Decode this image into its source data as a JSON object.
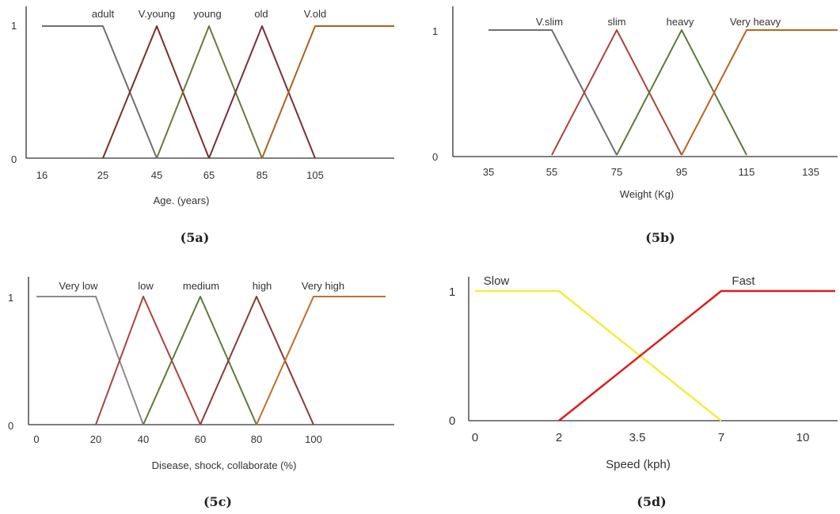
{
  "chart_data": [
    {
      "type": "line",
      "caption": "(5a)",
      "xlabel": "Age. (years)",
      "ylabel": "",
      "x_ticks": [
        "16",
        "25",
        "45",
        "65",
        "85",
        "105"
      ],
      "y_ticks": [
        "0",
        "1"
      ],
      "series": [
        {
          "name": "adult",
          "color": "#6f6f6f",
          "x": [
            "16",
            "25",
            "45"
          ],
          "y": [
            1,
            1,
            0
          ]
        },
        {
          "name": "V.young",
          "color": "#7a2e2e",
          "x": [
            "25",
            "45",
            "65"
          ],
          "y": [
            0,
            1,
            0
          ]
        },
        {
          "name": "young",
          "color": "#6b7a3a",
          "x": [
            "45",
            "65",
            "85"
          ],
          "y": [
            0,
            1,
            0
          ]
        },
        {
          "name": "old",
          "color": "#7a2e3e",
          "x": [
            "65",
            "85",
            "105"
          ],
          "y": [
            0,
            1,
            0
          ]
        },
        {
          "name": "V.old",
          "color": "#a8641e",
          "x": [
            "85",
            "105"
          ],
          "y": [
            0,
            1
          ],
          "extends_right": true
        }
      ]
    },
    {
      "type": "line",
      "caption": "(5b)",
      "xlabel": "Weight (Kg)",
      "ylabel": "",
      "x_ticks": [
        "35",
        "55",
        "75",
        "95",
        "115",
        "135"
      ],
      "y_ticks": [
        "0",
        "1"
      ],
      "series": [
        {
          "name": "V.slim",
          "color": "#6f6f6f",
          "x": [
            "35",
            "55",
            "75"
          ],
          "y": [
            1,
            1,
            0
          ]
        },
        {
          "name": "slim",
          "color": "#a9443e",
          "x": [
            "55",
            "75",
            "95"
          ],
          "y": [
            0,
            1,
            0
          ]
        },
        {
          "name": "heavy",
          "color": "#5f7a3a",
          "x": [
            "75",
            "95",
            "115"
          ],
          "y": [
            0,
            1,
            0
          ]
        },
        {
          "name": "Very heavy",
          "color": "#b8651e",
          "x": [
            "95",
            "115"
          ],
          "y": [
            0,
            1
          ],
          "extends_right": true
        }
      ]
    },
    {
      "type": "line",
      "caption": "(5c)",
      "xlabel": "Disease, shock, collaborate (%)",
      "ylabel": "",
      "x_ticks": [
        "0",
        "20",
        "40",
        "60",
        "80",
        "100"
      ],
      "y_ticks": [
        "0",
        "1"
      ],
      "series": [
        {
          "name": "Very low",
          "color": "#8c8c8c",
          "x": [
            "0",
            "20",
            "40"
          ],
          "y": [
            1,
            1,
            0
          ]
        },
        {
          "name": "low",
          "color": "#a9443e",
          "x": [
            "20",
            "40",
            "60"
          ],
          "y": [
            0,
            1,
            0
          ]
        },
        {
          "name": "medium",
          "color": "#5f7a3a",
          "x": [
            "40",
            "60",
            "80"
          ],
          "y": [
            0,
            1,
            0
          ]
        },
        {
          "name": "high",
          "color": "#8a3a3a",
          "x": [
            "60",
            "80",
            "100"
          ],
          "y": [
            0,
            1,
            0
          ]
        },
        {
          "name": "Very high",
          "color": "#c0702a",
          "x": [
            "80",
            "100"
          ],
          "y": [
            0,
            1
          ],
          "extends_right": true
        }
      ]
    },
    {
      "type": "line",
      "caption": "(5d)",
      "xlabel": "Speed (kph)",
      "ylabel": "",
      "x_ticks": [
        "0",
        "2",
        "3.5",
        "7",
        "10"
      ],
      "y_ticks": [
        "0",
        "1"
      ],
      "series": [
        {
          "name": "Slow",
          "color": "#f2ee3a",
          "x": [
            "0",
            "2",
            "7"
          ],
          "y": [
            1,
            1,
            0
          ]
        },
        {
          "name": "Fast",
          "color": "#e01b1b",
          "x": [
            "2",
            "7"
          ],
          "y": [
            0,
            1
          ],
          "extends_right": true
        }
      ]
    }
  ]
}
